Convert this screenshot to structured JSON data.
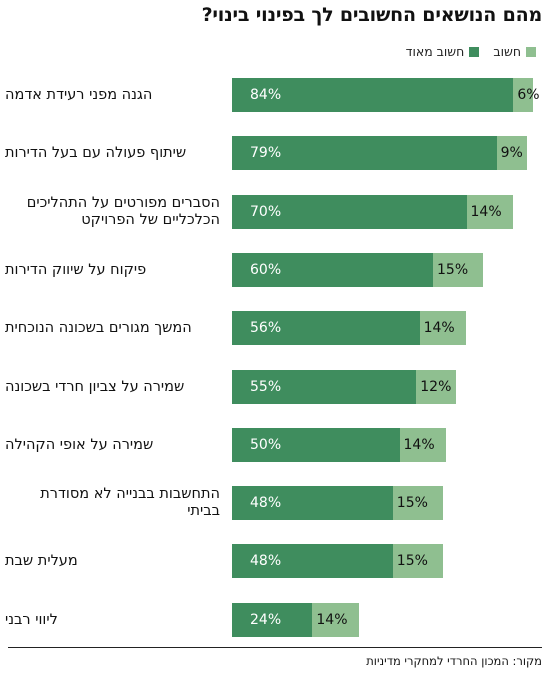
{
  "title": "מהם הנושאים החשובים לך בפינוי בינוי?",
  "legend": {
    "very_important": "חשוב מאוד",
    "important": "חשוב"
  },
  "colors": {
    "very_important": "#3f8d5e",
    "important": "#8fbf90"
  },
  "source": "מקור: המכון החרדי למחקרי מדיניות",
  "chart_data": {
    "type": "bar",
    "orientation": "horizontal",
    "stacked": true,
    "categories": [
      "הגנה מפני רעידת אדמה",
      "שיתוף פעולה עם בעל הדירות",
      "הסברים מפורטים על התהליכים הכלכליים של הפרויקט",
      "פיקוח על שיווק הדירות",
      "המשך מגורים בשכונה הנוכחית",
      "שמירה על צביון חרדי בשכונה",
      "שמירה על אופי הקהילה",
      "התחשבות בבנייה לא מסודרת בביתי",
      "מעלית שבת",
      "ליווי רבני"
    ],
    "series": [
      {
        "name": "חשוב מאוד",
        "values": [
          84,
          79,
          70,
          60,
          56,
          55,
          50,
          48,
          48,
          24
        ],
        "labels": [
          "84%",
          "79%",
          "70%",
          "60%",
          "56%",
          "55%",
          "50%",
          "48%",
          "48%",
          "24%"
        ]
      },
      {
        "name": "חשוב",
        "values": [
          6,
          9,
          14,
          15,
          14,
          12,
          14,
          15,
          15,
          14
        ],
        "labels": [
          "6%",
          "9%",
          "14%",
          "15%",
          "14%",
          "12%",
          "14%",
          "15%",
          "15%",
          "14%"
        ]
      }
    ]
  }
}
